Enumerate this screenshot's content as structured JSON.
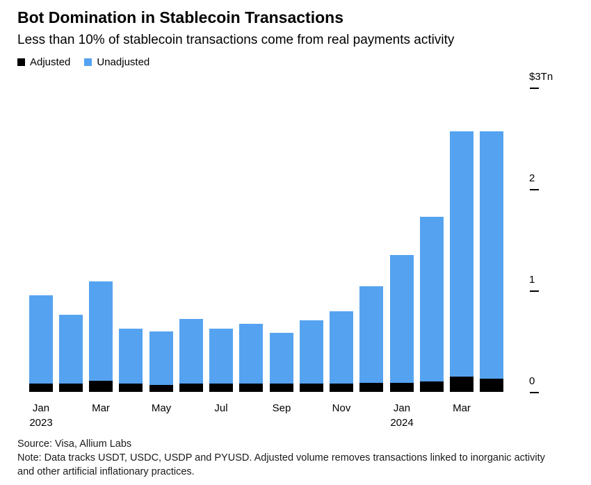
{
  "header": {
    "title": "Bot Domination in Stablecoin Transactions",
    "subtitle": "Less than 10% of stablecoin transactions come from real payments activity"
  },
  "legend": [
    {
      "label": "Adjusted",
      "color": "#000000"
    },
    {
      "label": "Unadjusted",
      "color": "#55a3f0"
    }
  ],
  "chart_data": {
    "type": "bar",
    "stacked": true,
    "title": "Bot Domination in Stablecoin Transactions",
    "categories": [
      "Jan 2023",
      "Feb 2023",
      "Mar 2023",
      "Apr 2023",
      "May 2023",
      "Jun 2023",
      "Jul 2023",
      "Aug 2023",
      "Sep 2023",
      "Oct 2023",
      "Nov 2023",
      "Dec 2023",
      "Jan 2024",
      "Feb 2024",
      "Mar 2024",
      "Apr 2024"
    ],
    "series": [
      {
        "name": "Adjusted",
        "color": "#000000",
        "values": [
          0.08,
          0.08,
          0.11,
          0.08,
          0.07,
          0.08,
          0.08,
          0.08,
          0.08,
          0.08,
          0.08,
          0.09,
          0.09,
          0.1,
          0.15,
          0.13
        ]
      },
      {
        "name": "Unadjusted",
        "color": "#55a3f0",
        "values": [
          0.87,
          0.68,
          0.98,
          0.54,
          0.53,
          0.64,
          0.54,
          0.59,
          0.5,
          0.62,
          0.71,
          0.95,
          1.26,
          1.62,
          2.42,
          2.44
        ]
      }
    ],
    "totals": [
      0.95,
      0.76,
      1.09,
      0.62,
      0.6,
      0.72,
      0.62,
      0.67,
      0.58,
      0.7,
      0.79,
      1.04,
      1.35,
      1.72,
      2.57,
      2.57
    ],
    "ylim": [
      0,
      3.05
    ],
    "grid": false,
    "legend_position": "top-left",
    "y_axis_side": "right",
    "y_ticks": [
      {
        "value": 3,
        "label": "$3Tn"
      },
      {
        "value": 2,
        "label": "2"
      },
      {
        "value": 1,
        "label": "1"
      },
      {
        "value": 0,
        "label": "0"
      }
    ],
    "x_tick_labels": [
      {
        "index": 0,
        "line1": "Jan",
        "line2": "2023"
      },
      {
        "index": 2,
        "line1": "Mar",
        "line2": ""
      },
      {
        "index": 4,
        "line1": "May",
        "line2": ""
      },
      {
        "index": 6,
        "line1": "Jul",
        "line2": ""
      },
      {
        "index": 8,
        "line1": "Sep",
        "line2": ""
      },
      {
        "index": 10,
        "line1": "Nov",
        "line2": ""
      },
      {
        "index": 12,
        "line1": "Jan",
        "line2": "2024"
      },
      {
        "index": 14,
        "line1": "Mar",
        "line2": ""
      }
    ]
  },
  "footer": {
    "source": "Source: Visa, Allium Labs",
    "note": "Note: Data tracks USDT, USDC, USDP and PYUSD. Adjusted volume removes transactions linked to inorganic activity and other artificial inflationary practices."
  }
}
